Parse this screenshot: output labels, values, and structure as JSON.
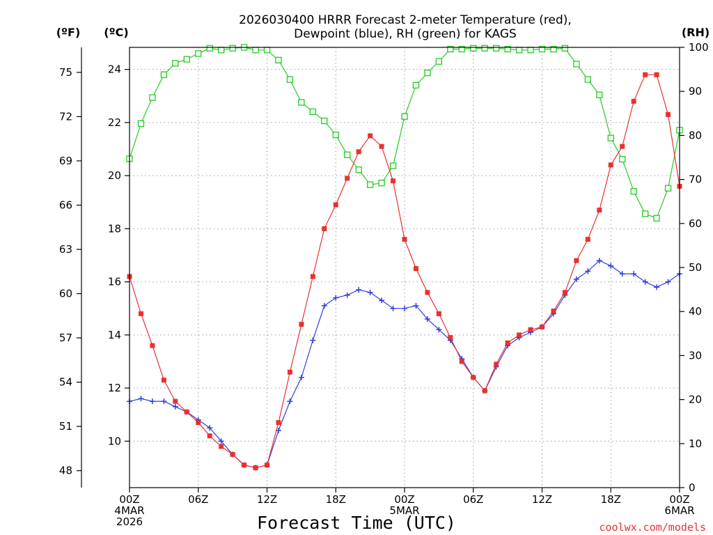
{
  "chart_data": {
    "type": "line",
    "title_line1": "2026030400 HRRR Forecast 2-meter Temperature (red),",
    "title_line2": "Dewpoint (blue), RH (green) for KAGS",
    "xlabel": "Forecast Time (UTC)",
    "credit": "coolwx.com/models",
    "units": {
      "fahrenheit": "(ºF)",
      "celsius": "(ºC)",
      "rh": "(RH)"
    },
    "x_range": [
      0,
      48
    ],
    "celsius_range": [
      8.25,
      24.83
    ],
    "rh_range": [
      0,
      100
    ],
    "x_ticks": [
      {
        "x": 0,
        "lines": [
          "00Z",
          "4MAR",
          "2026"
        ]
      },
      {
        "x": 6,
        "lines": [
          "06Z"
        ]
      },
      {
        "x": 12,
        "lines": [
          "12Z"
        ]
      },
      {
        "x": 18,
        "lines": [
          "18Z"
        ]
      },
      {
        "x": 24,
        "lines": [
          "00Z",
          "5MAR"
        ]
      },
      {
        "x": 30,
        "lines": [
          "06Z"
        ]
      },
      {
        "x": 36,
        "lines": [
          "12Z"
        ]
      },
      {
        "x": 42,
        "lines": [
          "18Z"
        ]
      },
      {
        "x": 48,
        "lines": [
          "00Z",
          "6MAR"
        ]
      }
    ],
    "celsius_ticks": [
      "10",
      "12",
      "14",
      "16",
      "18",
      "20",
      "22",
      "24"
    ],
    "fahrenheit_ticks": [
      "48",
      "51",
      "54",
      "57",
      "60",
      "63",
      "66",
      "69",
      "72",
      "75"
    ],
    "rh_ticks": [
      "0",
      "10",
      "20",
      "30",
      "40",
      "50",
      "60",
      "70",
      "80",
      "90",
      "100"
    ],
    "series": [
      {
        "name": "Temperature",
        "units": "C",
        "color": "#e8312f",
        "marker": "filled-square",
        "values": [
          16.2,
          14.8,
          13.6,
          12.3,
          11.5,
          11.1,
          10.7,
          10.2,
          9.8,
          9.5,
          9.1,
          9.0,
          9.1,
          10.7,
          12.6,
          14.4,
          16.2,
          18.0,
          18.9,
          19.9,
          20.9,
          21.5,
          21.1,
          19.8,
          17.6,
          16.5,
          15.6,
          14.8,
          13.9,
          13.0,
          12.4,
          11.9,
          12.9,
          13.7,
          14.0,
          14.2,
          14.3,
          14.9,
          15.6,
          16.8,
          17.6,
          18.7,
          20.4,
          21.1,
          22.8,
          23.8,
          23.8,
          22.3,
          19.6
        ]
      },
      {
        "name": "Dewpoint",
        "units": "C",
        "color": "#2f3fe0",
        "marker": "plus",
        "values": [
          11.5,
          11.6,
          11.5,
          11.5,
          11.3,
          11.1,
          10.8,
          10.5,
          10.0,
          9.5,
          9.1,
          9.0,
          9.1,
          10.4,
          11.5,
          12.4,
          13.8,
          15.1,
          15.4,
          15.5,
          15.7,
          15.6,
          15.3,
          15.0,
          15.0,
          15.1,
          14.6,
          14.2,
          13.8,
          13.1,
          12.4,
          11.9,
          12.8,
          13.6,
          13.9,
          14.1,
          14.3,
          14.8,
          15.5,
          16.1,
          16.4,
          16.8,
          16.6,
          16.3,
          16.3,
          16.0,
          15.8,
          16.0,
          16.3
        ]
      },
      {
        "name": "RH",
        "units": "%",
        "color": "#22cc22",
        "marker": "open-square",
        "values": [
          74.7,
          82.7,
          88.6,
          93.8,
          96.4,
          97.3,
          98.6,
          99.8,
          99.4,
          99.8,
          100.0,
          99.4,
          99.4,
          97.1,
          92.7,
          87.5,
          85.4,
          83.3,
          80.1,
          75.6,
          72.2,
          68.8,
          69.2,
          73.1,
          84.3,
          91.4,
          94.2,
          96.8,
          99.6,
          99.6,
          99.8,
          99.8,
          99.8,
          99.6,
          99.4,
          99.4,
          99.6,
          99.6,
          99.8,
          96.2,
          92.7,
          89.2,
          79.4,
          74.6,
          67.3,
          62.2,
          61.2,
          68.0,
          81.2
        ]
      }
    ]
  }
}
